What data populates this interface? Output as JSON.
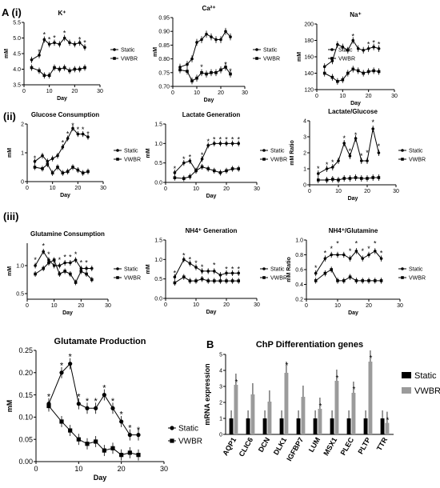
{
  "panel_labels": {
    "A": "A (i)",
    "ii": "(ii)",
    "iii": "(iii)",
    "B": "B"
  },
  "legend_labels": {
    "static": "Static",
    "vwbr": "VWBR"
  },
  "colors": {
    "static": "#000000",
    "vwbr": "#000000",
    "bar_static": "#000000",
    "bar_vwbr": "#9b9b9b"
  },
  "chart_data": [
    {
      "id": "potassium",
      "type": "line",
      "title": "K⁺",
      "xlabel": "Day",
      "ylabel": "mM",
      "xlim": [
        0,
        30
      ],
      "ylim": [
        3.5,
        5.5
      ],
      "xticks": [
        0,
        10,
        20,
        30
      ],
      "yticks": [
        3.5,
        4.0,
        4.5,
        5.0,
        5.5
      ],
      "ytick_labels": [
        "3.5",
        "4.0",
        "4.5",
        "5.0",
        "5.5"
      ],
      "x": [
        3,
        6,
        8,
        10,
        12,
        14,
        16,
        18,
        20,
        22,
        24
      ],
      "series": [
        {
          "name": "Static",
          "marker": "circle",
          "values": [
            4.3,
            4.45,
            4.95,
            4.8,
            4.85,
            4.8,
            5.0,
            4.85,
            4.8,
            4.85,
            4.7
          ]
        },
        {
          "name": "VWBR",
          "marker": "square",
          "values": [
            4.05,
            3.95,
            3.8,
            3.8,
            4.05,
            4.0,
            4.05,
            3.95,
            4.0,
            4.0,
            4.05
          ]
        }
      ],
      "stars": [
        [
          6,
          4.55
        ],
        [
          8,
          5.1
        ],
        [
          10,
          4.95
        ],
        [
          12,
          5.0
        ],
        [
          16,
          5.15
        ],
        [
          22,
          4.95
        ],
        [
          24,
          4.85
        ]
      ]
    },
    {
      "id": "calcium",
      "type": "line",
      "title": "Ca²⁺",
      "xlabel": "Day",
      "ylabel": "mM",
      "xlim": [
        0,
        30
      ],
      "ylim": [
        0.7,
        0.95
      ],
      "xticks": [
        0,
        10,
        20,
        30
      ],
      "yticks": [
        0.7,
        0.75,
        0.8,
        0.85,
        0.9,
        0.95
      ],
      "ytick_labels": [
        "0.70",
        "0.75",
        "0.80",
        "0.85",
        "0.90",
        "0.95"
      ],
      "x": [
        3,
        6,
        8,
        10,
        12,
        14,
        16,
        18,
        20,
        22,
        24
      ],
      "series": [
        {
          "name": "Static",
          "marker": "circle",
          "values": [
            0.77,
            0.78,
            0.8,
            0.86,
            0.87,
            0.89,
            0.88,
            0.87,
            0.87,
            0.9,
            0.88
          ]
        },
        {
          "name": "VWBR",
          "marker": "square",
          "values": [
            0.76,
            0.755,
            0.72,
            0.73,
            0.75,
            0.745,
            0.75,
            0.75,
            0.76,
            0.77,
            0.745
          ]
        }
      ],
      "stars": [
        [
          12,
          0.77
        ],
        [
          22,
          0.78
        ],
        [
          24,
          0.755
        ]
      ]
    },
    {
      "id": "sodium",
      "type": "line",
      "title": "Na⁺",
      "xlabel": "Day",
      "ylabel": "mM",
      "xlim": [
        0,
        30
      ],
      "ylim": [
        120,
        200
      ],
      "xticks": [
        0,
        10,
        20,
        30
      ],
      "yticks": [
        120,
        140,
        160,
        180,
        200
      ],
      "ytick_labels": [
        "120",
        "140",
        "160",
        "180",
        "200"
      ],
      "x": [
        3,
        6,
        8,
        10,
        12,
        14,
        16,
        18,
        20,
        22,
        24
      ],
      "series": [
        {
          "name": "Static",
          "marker": "circle",
          "values": [
            148,
            155,
            175,
            172,
            168,
            180,
            170,
            168,
            170,
            172,
            170
          ]
        },
        {
          "name": "VWBR",
          "marker": "square",
          "values": [
            140,
            135,
            130,
            132,
            140,
            145,
            143,
            140,
            142,
            143,
            142
          ]
        }
      ],
      "stars": [
        [
          14,
          185
        ],
        [
          20,
          175
        ],
        [
          22,
          177
        ],
        [
          24,
          175
        ]
      ]
    },
    {
      "id": "glucose",
      "type": "line",
      "title": "Glucose Consumption",
      "xlabel": "Day",
      "ylabel": "mM",
      "xlim": [
        0,
        30
      ],
      "ylim": [
        0,
        2
      ],
      "xticks": [
        0,
        10,
        20,
        30
      ],
      "yticks": [
        0,
        1,
        2
      ],
      "ytick_labels": [
        "0",
        "1",
        "2"
      ],
      "x": [
        3,
        6,
        8,
        10,
        12,
        14,
        16,
        18,
        20,
        22,
        24
      ],
      "series": [
        {
          "name": "Static",
          "marker": "circle",
          "values": [
            0.7,
            0.9,
            0.7,
            0.8,
            0.9,
            1.2,
            1.5,
            1.85,
            1.65,
            1.65,
            1.55
          ]
        },
        {
          "name": "VWBR",
          "marker": "square",
          "values": [
            0.5,
            0.45,
            0.6,
            0.3,
            0.5,
            0.3,
            0.35,
            0.5,
            0.4,
            0.3,
            0.35
          ]
        }
      ],
      "stars": [
        [
          3,
          0.8
        ],
        [
          14,
          1.35
        ],
        [
          16,
          1.65
        ],
        [
          18,
          1.95
        ],
        [
          20,
          1.8
        ],
        [
          22,
          1.8
        ],
        [
          24,
          1.65
        ]
      ]
    },
    {
      "id": "lactate",
      "type": "line",
      "title": "Lactate Generation",
      "xlabel": "Day",
      "ylabel": "mM",
      "xlim": [
        0,
        30
      ],
      "ylim": [
        0,
        1.5
      ],
      "xticks": [
        0,
        10,
        20,
        30
      ],
      "yticks": [
        0,
        0.5,
        1.0,
        1.5
      ],
      "ytick_labels": [
        "0.0",
        "0.5",
        "1.0",
        "1.5"
      ],
      "x": [
        3,
        6,
        8,
        10,
        12,
        14,
        16,
        18,
        20,
        22,
        24
      ],
      "series": [
        {
          "name": "Static",
          "marker": "circle",
          "values": [
            0.25,
            0.5,
            0.55,
            0.3,
            0.6,
            0.95,
            1.0,
            1.0,
            1.0,
            1.0,
            1.0
          ]
        },
        {
          "name": "VWBR",
          "marker": "square",
          "values": [
            0.12,
            0.1,
            0.15,
            0.3,
            0.4,
            0.35,
            0.3,
            0.25,
            0.3,
            0.35,
            0.35
          ]
        }
      ],
      "stars": [
        [
          3,
          0.35
        ],
        [
          6,
          0.6
        ],
        [
          8,
          0.65
        ],
        [
          12,
          0.7
        ],
        [
          14,
          1.05
        ],
        [
          16,
          1.1
        ],
        [
          18,
          1.1
        ],
        [
          20,
          1.1
        ],
        [
          22,
          1.1
        ],
        [
          24,
          1.1
        ]
      ]
    },
    {
      "id": "lactate_glucose",
      "type": "line",
      "title": "Lactate/Glucose",
      "xlabel": "Day",
      "ylabel": "mM Ratio",
      "xlim": [
        0,
        30
      ],
      "ylim": [
        0,
        4
      ],
      "xticks": [
        0,
        10,
        20,
        30
      ],
      "yticks": [
        0,
        1,
        2,
        3,
        4
      ],
      "ytick_labels": [
        "0",
        "1",
        "2",
        "3",
        "4"
      ],
      "x": [
        3,
        6,
        8,
        10,
        12,
        14,
        16,
        18,
        20,
        22,
        24
      ],
      "series": [
        {
          "name": "Static",
          "marker": "circle",
          "values": [
            0.7,
            1.0,
            1.1,
            1.5,
            2.6,
            1.8,
            2.9,
            1.5,
            1.5,
            3.5,
            2.0
          ]
        },
        {
          "name": "VWBR",
          "marker": "square",
          "values": [
            0.3,
            0.3,
            0.35,
            0.3,
            0.4,
            0.4,
            0.45,
            0.4,
            0.4,
            0.45,
            0.45
          ]
        }
      ],
      "stars": [
        [
          3,
          1.0
        ],
        [
          6,
          1.25
        ],
        [
          8,
          1.4
        ],
        [
          12,
          2.9
        ],
        [
          14,
          2.1
        ],
        [
          16,
          3.1
        ],
        [
          18,
          1.8
        ],
        [
          20,
          2.0
        ],
        [
          22,
          3.9
        ],
        [
          24,
          2.4
        ]
      ]
    },
    {
      "id": "glutamine",
      "type": "line",
      "title": "Glutamine Consumption",
      "xlabel": "Day",
      "ylabel": "mM",
      "xlim": [
        0,
        30
      ],
      "ylim": [
        0.4,
        1.4
      ],
      "xticks": [
        0,
        10,
        20,
        30
      ],
      "yticks": [
        0.5,
        1.0
      ],
      "ytick_labels": [
        "0.5",
        "1.0"
      ],
      "x": [
        3,
        6,
        8,
        10,
        12,
        14,
        16,
        18,
        20,
        22,
        24
      ],
      "series": [
        {
          "name": "Static",
          "marker": "circle",
          "values": [
            1.0,
            1.25,
            1.1,
            1.0,
            1.0,
            1.05,
            1.05,
            1.1,
            0.95,
            0.95,
            0.95
          ]
        },
        {
          "name": "VWBR",
          "marker": "square",
          "values": [
            0.85,
            0.95,
            1.05,
            1.1,
            0.85,
            0.9,
            0.85,
            0.7,
            0.9,
            0.85,
            0.75
          ]
        }
      ],
      "stars": [
        [
          3,
          1.1
        ],
        [
          6,
          1.35
        ],
        [
          8,
          1.2
        ],
        [
          12,
          1.1
        ],
        [
          14,
          1.15
        ],
        [
          16,
          1.15
        ],
        [
          18,
          1.2
        ],
        [
          20,
          1.05
        ],
        [
          22,
          1.05
        ]
      ]
    },
    {
      "id": "nh4",
      "type": "line",
      "title": "NH4⁺ Generation",
      "xlabel": "Day",
      "ylabel": "mM",
      "xlim": [
        0,
        30
      ],
      "ylim": [
        0,
        1.5
      ],
      "xticks": [
        0,
        10,
        20,
        30
      ],
      "yticks": [
        0,
        0.5,
        1.0,
        1.5
      ],
      "ytick_labels": [
        "0.0",
        "0.5",
        "1.0",
        "1.5"
      ],
      "x": [
        3,
        6,
        8,
        10,
        12,
        14,
        16,
        18,
        20,
        22,
        24
      ],
      "series": [
        {
          "name": "Static",
          "marker": "circle",
          "values": [
            0.55,
            1.0,
            0.9,
            0.8,
            0.7,
            0.7,
            0.7,
            0.6,
            0.65,
            0.65,
            0.65
          ]
        },
        {
          "name": "VWBR",
          "marker": "square",
          "values": [
            0.4,
            0.55,
            0.45,
            0.45,
            0.5,
            0.45,
            0.45,
            0.45,
            0.45,
            0.45,
            0.45
          ]
        }
      ],
      "stars": [
        [
          3,
          0.65
        ],
        [
          6,
          1.1
        ],
        [
          8,
          1.0
        ],
        [
          10,
          0.9
        ],
        [
          12,
          0.8
        ],
        [
          16,
          0.85
        ],
        [
          20,
          0.75
        ],
        [
          22,
          0.75
        ],
        [
          24,
          0.75
        ]
      ]
    },
    {
      "id": "nh4_glutamine",
      "type": "line",
      "title": "NH4⁺/Glutamine",
      "xlabel": "Day",
      "ylabel": "mM Ratio",
      "xlim": [
        0,
        30
      ],
      "ylim": [
        0.2,
        1.0
      ],
      "xticks": [
        0,
        10,
        20,
        30
      ],
      "yticks": [
        0.2,
        0.4,
        0.6,
        0.8,
        1.0
      ],
      "ytick_labels": [
        "0.2",
        "0.4",
        "0.6",
        "0.8",
        "1.0"
      ],
      "x": [
        3,
        6,
        8,
        10,
        12,
        14,
        16,
        18,
        20,
        22,
        24
      ],
      "series": [
        {
          "name": "Static",
          "marker": "circle",
          "values": [
            0.55,
            0.75,
            0.8,
            0.8,
            0.8,
            0.75,
            0.85,
            0.75,
            0.8,
            0.85,
            0.75
          ]
        },
        {
          "name": "VWBR",
          "marker": "square",
          "values": [
            0.45,
            0.55,
            0.6,
            0.45,
            0.45,
            0.5,
            0.45,
            0.45,
            0.45,
            0.45,
            0.45
          ]
        }
      ],
      "stars": [
        [
          3,
          0.62
        ],
        [
          6,
          0.82
        ],
        [
          8,
          0.88
        ],
        [
          10,
          0.95
        ],
        [
          14,
          0.85
        ],
        [
          16,
          0.95
        ],
        [
          18,
          0.85
        ],
        [
          20,
          0.88
        ],
        [
          22,
          0.95
        ],
        [
          24,
          0.82
        ]
      ]
    },
    {
      "id": "glutamate",
      "type": "line",
      "title": "Glutamate Production",
      "xlabel": "Day",
      "ylabel": "mM",
      "xlim": [
        0,
        30
      ],
      "ylim": [
        0,
        0.25
      ],
      "xticks": [
        0,
        10,
        20,
        30
      ],
      "yticks": [
        0,
        0.05,
        0.1,
        0.15,
        0.2,
        0.25
      ],
      "ytick_labels": [
        "0.00",
        "0.05",
        "0.10",
        "0.15",
        "0.20",
        "0.25"
      ],
      "x": [
        3,
        6,
        8,
        10,
        12,
        14,
        16,
        18,
        20,
        22,
        24
      ],
      "series": [
        {
          "name": "Static",
          "marker": "circle",
          "values": [
            0.13,
            0.2,
            0.22,
            0.13,
            0.12,
            0.12,
            0.15,
            0.12,
            0.09,
            0.06,
            0.06
          ]
        },
        {
          "name": "VWBR",
          "marker": "square",
          "values": [
            0.125,
            0.09,
            0.07,
            0.05,
            0.04,
            0.045,
            0.025,
            0.03,
            0.015,
            0.02,
            0.015
          ]
        }
      ],
      "stars": [
        [
          3,
          0.145
        ],
        [
          6,
          0.215
        ],
        [
          8,
          0.235
        ],
        [
          10,
          0.145
        ],
        [
          12,
          0.135
        ],
        [
          14,
          0.135
        ],
        [
          16,
          0.165
        ],
        [
          18,
          0.135
        ],
        [
          20,
          0.105
        ],
        [
          22,
          0.075
        ],
        [
          24,
          0.07
        ]
      ]
    },
    {
      "id": "chp_genes",
      "type": "bar",
      "title": "ChP Differentiation genes",
      "ylabel": "mRNA expression",
      "ylim": [
        0,
        5
      ],
      "yticks": [
        0,
        1,
        2,
        3,
        4,
        5
      ],
      "ytick_labels": [
        "0",
        "1",
        "2",
        "3",
        "4",
        "5"
      ],
      "categories": [
        "AQP1",
        "CLIC6",
        "DCN",
        "DLK1",
        "IGFBP7",
        "LUM",
        "MSX1",
        "PLEC",
        "PLTP",
        "TTR"
      ],
      "series": [
        {
          "name": "Static",
          "values": [
            1,
            1,
            1,
            1,
            1,
            1,
            1,
            1,
            1,
            1
          ]
        },
        {
          "name": "VWBR",
          "values": [
            3.1,
            2.5,
            2.05,
            3.85,
            2.35,
            1.6,
            3.35,
            2.6,
            4.55,
            0.72
          ]
        }
      ],
      "stars": [
        [
          0,
          3.25
        ],
        [
          3,
          4.3
        ],
        [
          5,
          1.75
        ],
        [
          6,
          3.5
        ],
        [
          7,
          2.8
        ],
        [
          8,
          4.75
        ],
        [
          9,
          0.88
        ]
      ]
    }
  ]
}
